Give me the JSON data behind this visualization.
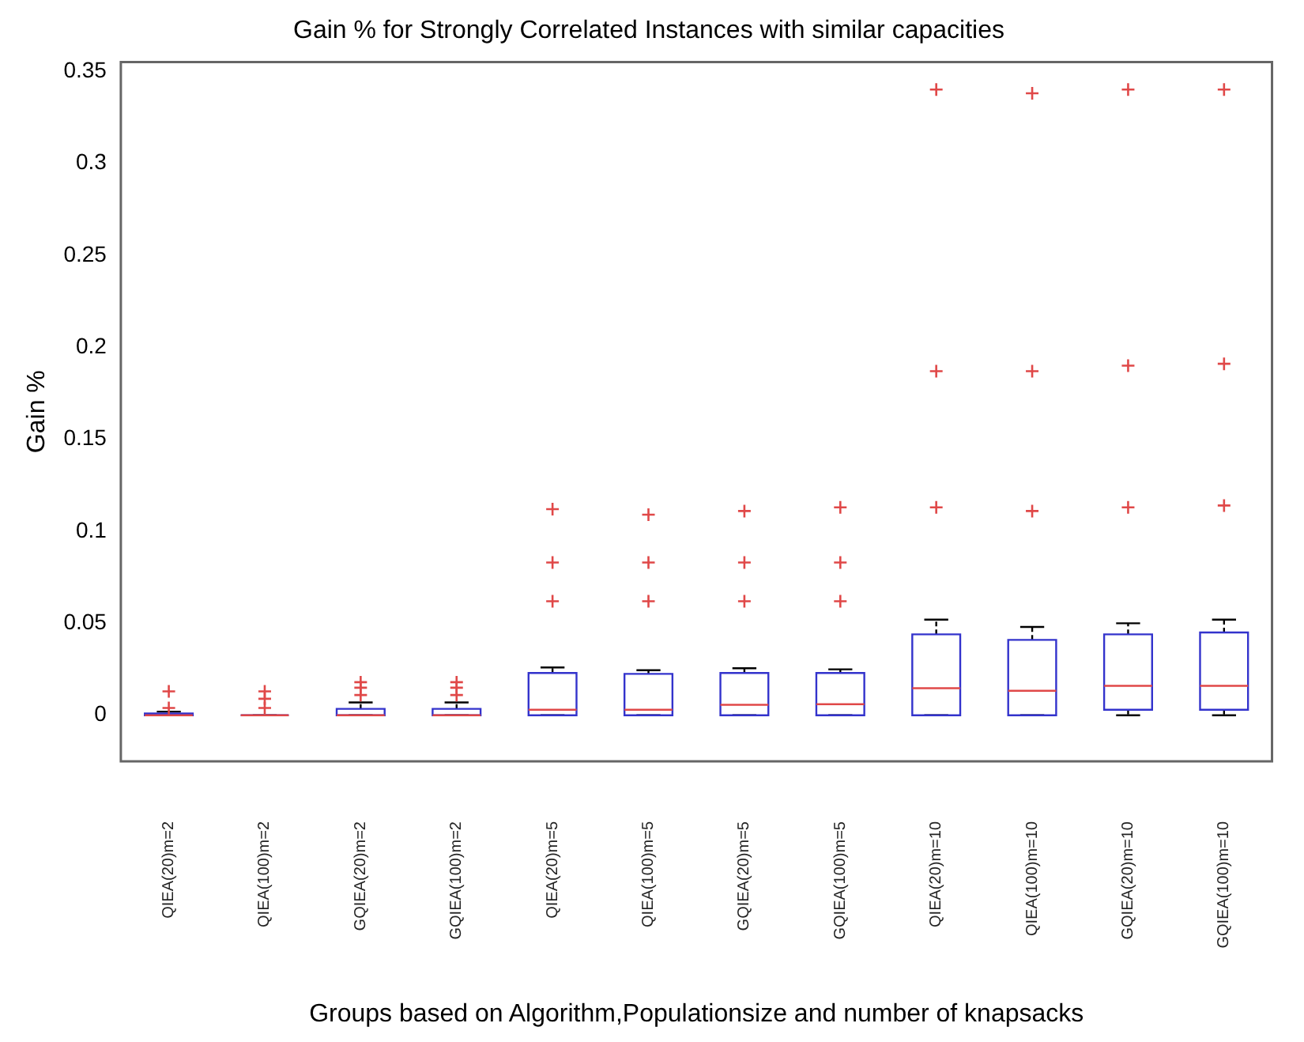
{
  "chart_data": {
    "type": "box",
    "title": "Gain % for Strongly Correlated Instances with similar capacities",
    "xlabel": "Groups based on Algorithm,Populationsize and number of knapsacks",
    "ylabel": "Gain %",
    "categories": [
      "QIEA(20)m=2",
      "QIEA(100)m=2",
      "GQIEA(20)m=2",
      "GQIEA(100)m=2",
      "QIEA(20)m=5",
      "QIEA(100)m=5",
      "GQIEA(20)m=5",
      "GQIEA(100)m=5",
      "QIEA(20)m=10",
      "QIEA(100)m=10",
      "GQIEA(20)m=10",
      "GQIEA(100)m=10"
    ],
    "color": "#3333cc",
    "marker": "cross",
    "ylim": [
      -0.025,
      0.355
    ],
    "yticks": [
      0,
      0.05,
      0.1,
      0.15,
      0.2,
      0.25,
      0.3,
      0.35
    ],
    "grid": false,
    "legend": false,
    "boxes": [
      {
        "low": 0,
        "q1": 0,
        "median": 0,
        "q3": 0.001,
        "high": 0.002,
        "outliers": [
          0.013,
          0.004
        ]
      },
      {
        "low": 0,
        "q1": 0,
        "median": 0,
        "q3": 0,
        "high": 0,
        "outliers": [
          0.013,
          0.009,
          0.004
        ]
      },
      {
        "low": 0,
        "q1": 0,
        "median": 0,
        "q3": 0.0035,
        "high": 0.007,
        "outliers": [
          0.018,
          0.015,
          0.011
        ]
      },
      {
        "low": 0,
        "q1": 0,
        "median": 0,
        "q3": 0.0035,
        "high": 0.007,
        "outliers": [
          0.018,
          0.015,
          0.011
        ]
      },
      {
        "low": 0,
        "q1": 0,
        "median": 0.003,
        "q3": 0.023,
        "high": 0.026,
        "outliers": [
          0.112,
          0.083,
          0.062
        ]
      },
      {
        "low": 0,
        "q1": 0,
        "median": 0.003,
        "q3": 0.0225,
        "high": 0.0245,
        "outliers": [
          0.109,
          0.083,
          0.062
        ]
      },
      {
        "low": 0,
        "q1": 0,
        "median": 0.0057,
        "q3": 0.023,
        "high": 0.0256,
        "outliers": [
          0.111,
          0.083,
          0.062
        ]
      },
      {
        "low": 0,
        "q1": 0,
        "median": 0.006,
        "q3": 0.023,
        "high": 0.025,
        "outliers": [
          0.113,
          0.083,
          0.062
        ]
      },
      {
        "low": 0,
        "q1": 0,
        "median": 0.0147,
        "q3": 0.044,
        "high": 0.052,
        "outliers": [
          0.34,
          0.187,
          0.113
        ]
      },
      {
        "low": 0,
        "q1": 0,
        "median": 0.0133,
        "q3": 0.041,
        "high": 0.048,
        "outliers": [
          0.338,
          0.187,
          0.111
        ]
      },
      {
        "low": 0,
        "q1": 0.003,
        "median": 0.016,
        "q3": 0.044,
        "high": 0.05,
        "outliers": [
          0.34,
          0.19,
          0.113
        ]
      },
      {
        "low": 0,
        "q1": 0.003,
        "median": 0.016,
        "q3": 0.045,
        "high": 0.052,
        "outliers": [
          0.34,
          0.191,
          0.114
        ]
      }
    ]
  }
}
